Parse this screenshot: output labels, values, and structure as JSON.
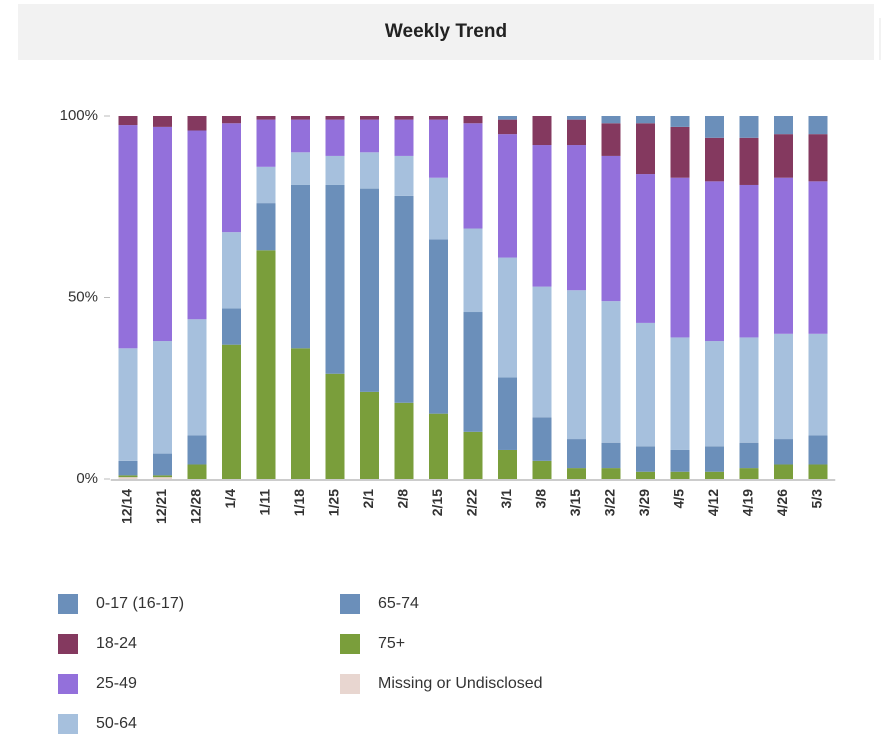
{
  "chart_data": {
    "type": "stacked-bar",
    "title": "Weekly Trend",
    "categories": [
      "12/14",
      "12/21",
      "12/28",
      "1/4",
      "1/11",
      "1/18",
      "1/25",
      "2/1",
      "2/8",
      "2/15",
      "2/22",
      "3/1",
      "3/8",
      "3/15",
      "3/22",
      "3/29",
      "4/5",
      "4/12",
      "4/19",
      "4/26",
      "5/3"
    ],
    "series": [
      {
        "name": "0-17 (16-17)",
        "color": "#6b8fba",
        "values": [
          0,
          0,
          0,
          0,
          0,
          0,
          0,
          0,
          0,
          0,
          0,
          1,
          0,
          1,
          2,
          2,
          3,
          6,
          6,
          5,
          5
        ]
      },
      {
        "name": "18-24",
        "color": "#84395f",
        "values": [
          2.5,
          3,
          4,
          2,
          1,
          1,
          1,
          1,
          1,
          1,
          2,
          4,
          8,
          7,
          9,
          14,
          14,
          12,
          13,
          12,
          13
        ]
      },
      {
        "name": "25-49",
        "color": "#9370db",
        "values": [
          61.5,
          59,
          52,
          30,
          13,
          9,
          10,
          9,
          10,
          16,
          29,
          34,
          39,
          40,
          40,
          41,
          44,
          44,
          42,
          43,
          42
        ]
      },
      {
        "name": "50-64",
        "color": "#a6c0dd",
        "values": [
          31,
          31,
          32,
          21,
          10,
          9,
          8,
          10,
          11,
          17,
          23,
          33,
          36,
          41,
          39,
          34,
          31,
          29,
          29,
          29,
          28
        ]
      },
      {
        "name": "65-74",
        "color": "#6b8fba",
        "values": [
          4,
          6,
          8,
          10,
          13,
          45,
          52,
          56,
          57,
          48,
          33,
          20,
          12,
          8,
          7,
          7,
          6,
          7,
          7,
          7,
          8
        ]
      },
      {
        "name": "75+",
        "color": "#7a9e3b",
        "values": [
          0.5,
          0.5,
          4,
          37,
          63,
          36,
          29,
          24,
          21,
          18,
          13,
          8,
          5,
          3,
          3,
          2,
          2,
          2,
          3,
          4,
          4
        ]
      },
      {
        "name": "Missing or Undisclosed",
        "color": "#e8d6d0",
        "values": [
          0.5,
          0.5,
          0,
          0,
          0,
          0,
          0,
          0,
          0,
          0,
          0,
          0,
          0,
          0,
          0,
          0,
          0,
          0,
          0,
          0,
          0
        ]
      }
    ],
    "ylim": [
      0,
      100
    ],
    "yticks": [
      {
        "value": 0,
        "label": "0%"
      },
      {
        "value": 50,
        "label": "50%"
      },
      {
        "value": 100,
        "label": "100%"
      }
    ]
  }
}
